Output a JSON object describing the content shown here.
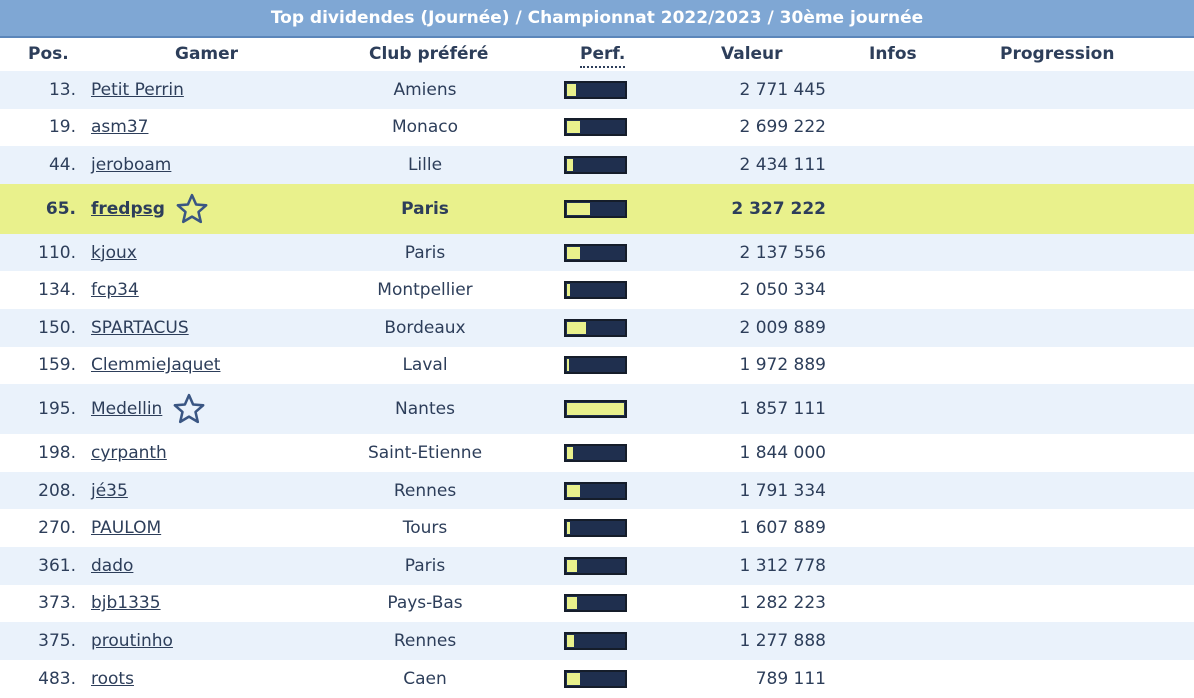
{
  "title": "Top dividendes (Journée) / Championnat 2022/2023 / 30ème journée",
  "headers": {
    "pos": "Pos.",
    "gamer": "Gamer",
    "club": "Club préféré",
    "perf": "Perf.",
    "valeur": "Valeur",
    "infos": "Infos",
    "progression": "Progression"
  },
  "colors": {
    "title_bg": "#7fa7d4",
    "row_alt": "#eaf2fb",
    "highlight": "#e9f18c",
    "perf_bar": "#1f2f4e"
  },
  "rows": [
    {
      "pos": "13.",
      "gamer": "Petit Perrin",
      "club": "Amiens",
      "perf": 0.15,
      "valeur": "2 771 445",
      "star": false,
      "highlight": false
    },
    {
      "pos": "19.",
      "gamer": "asm37",
      "club": "Monaco",
      "perf": 0.22,
      "valeur": "2 699 222",
      "star": false,
      "highlight": false
    },
    {
      "pos": "44.",
      "gamer": "jeroboam",
      "club": "Lille",
      "perf": 0.1,
      "valeur": "2 434 111",
      "star": false,
      "highlight": false
    },
    {
      "pos": "65.",
      "gamer": "fredpsg",
      "club": "Paris",
      "perf": 0.4,
      "valeur": "2 327 222",
      "star": true,
      "highlight": true
    },
    {
      "pos": "110.",
      "gamer": "kjoux",
      "club": "Paris",
      "perf": 0.22,
      "valeur": "2 137 556",
      "star": false,
      "highlight": false
    },
    {
      "pos": "134.",
      "gamer": "fcp34",
      "club": "Montpellier",
      "perf": 0.05,
      "valeur": "2 050 334",
      "star": false,
      "highlight": false
    },
    {
      "pos": "150.",
      "gamer": "SPARTACUS",
      "club": "Bordeaux",
      "perf": 0.33,
      "valeur": "2 009 889",
      "star": false,
      "highlight": false
    },
    {
      "pos": "159.",
      "gamer": "ClemmieJaquet",
      "club": "Laval",
      "perf": 0.03,
      "valeur": "1 972 889",
      "star": false,
      "highlight": false
    },
    {
      "pos": "195.",
      "gamer": "Medellin",
      "club": "Nantes",
      "perf": 1.0,
      "valeur": "1 857 111",
      "star": true,
      "highlight": false
    },
    {
      "pos": "198.",
      "gamer": "cyrpanth",
      "club": "Saint-Etienne",
      "perf": 0.1,
      "valeur": "1 844 000",
      "star": false,
      "highlight": false
    },
    {
      "pos": "208.",
      "gamer": "jé35",
      "club": "Rennes",
      "perf": 0.22,
      "valeur": "1 791 334",
      "star": false,
      "highlight": false
    },
    {
      "pos": "270.",
      "gamer": "PAULOM",
      "club": "Tours",
      "perf": 0.05,
      "valeur": "1 607 889",
      "star": false,
      "highlight": false
    },
    {
      "pos": "361.",
      "gamer": "dado",
      "club": "Paris",
      "perf": 0.17,
      "valeur": "1 312 778",
      "star": false,
      "highlight": false
    },
    {
      "pos": "373.",
      "gamer": "bjb1335",
      "club": "Pays-Bas",
      "perf": 0.17,
      "valeur": "1 282 223",
      "star": false,
      "highlight": false
    },
    {
      "pos": "375.",
      "gamer": "proutinho",
      "club": "Rennes",
      "perf": 0.12,
      "valeur": "1 277 888",
      "star": false,
      "highlight": false
    },
    {
      "pos": "483.",
      "gamer": "roots",
      "club": "Caen",
      "perf": 0.22,
      "valeur": "789 111",
      "star": false,
      "highlight": false
    }
  ]
}
